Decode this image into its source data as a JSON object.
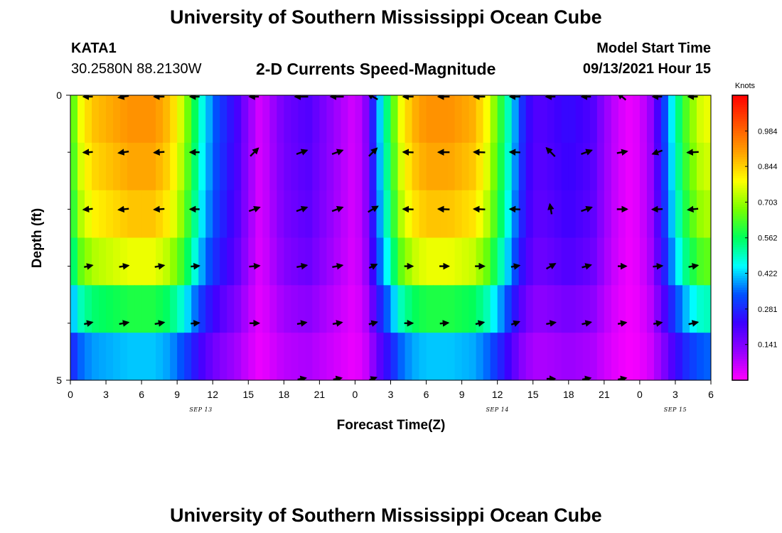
{
  "header": {
    "title": "University of Southern Mississippi Ocean Cube",
    "station_id": "KATA1",
    "station_coords": "30.2580N  88.2130W",
    "plot_title": "2-D Currents Speed-Magnitude",
    "model_start_label": "Model Start Time",
    "model_start_value": "09/13/2021 Hour 15"
  },
  "footer": {
    "title": "University of Southern Mississippi Ocean Cube"
  },
  "chart_data": {
    "type": "heatmap",
    "title": "2-D Currents Speed-Magnitude",
    "xlabel": "Forecast Time(Z)",
    "ylabel": "Depth (ft)",
    "x_range_hours": [
      0,
      54
    ],
    "y_range_ft": [
      0,
      5
    ],
    "x_ticks": [
      "0",
      "3",
      "6",
      "9",
      "12",
      "15",
      "18",
      "21",
      "0",
      "3",
      "6",
      "9",
      "12",
      "15",
      "18",
      "21",
      "0",
      "3",
      "6"
    ],
    "x_tick_hours": [
      0,
      3,
      6,
      9,
      12,
      15,
      18,
      21,
      24,
      27,
      30,
      33,
      36,
      39,
      42,
      45,
      48,
      51,
      54
    ],
    "date_labels": [
      {
        "label": "SEP 13",
        "hour": 11
      },
      {
        "label": "SEP 14",
        "hour": 36
      },
      {
        "label": "SEP 15",
        "hour": 51
      }
    ],
    "y_ticks": [
      "0",
      "5"
    ],
    "y_tick_values": [
      0,
      5
    ],
    "colorbar": {
      "units": "Knots",
      "min": 0.0,
      "max": 1.125,
      "tick_labels": [
        "0.984",
        "0.844",
        "0.703",
        "0.562",
        "0.422",
        "0.281",
        "0.141"
      ],
      "tick_values": [
        0.984,
        0.844,
        0.703,
        0.562,
        0.422,
        0.281,
        0.141
      ]
    },
    "depth_levels_ft": [
      0,
      1,
      2,
      3,
      4,
      5
    ],
    "speed_time_hours": [
      0,
      1,
      2,
      3,
      4,
      5,
      6,
      7,
      8,
      9,
      10,
      11,
      12,
      13,
      14,
      15,
      16,
      17,
      18,
      19,
      20,
      21,
      22,
      23,
      24,
      25,
      26,
      27,
      28,
      29,
      30,
      31,
      32,
      33,
      34,
      35,
      36,
      37,
      38,
      39,
      40,
      41,
      42,
      43,
      44,
      45,
      46,
      47,
      48,
      49,
      50,
      51,
      52,
      53,
      54
    ],
    "speed_surface_knots": [
      0.6,
      0.8,
      0.86,
      0.88,
      0.9,
      0.92,
      0.92,
      0.92,
      0.88,
      0.8,
      0.65,
      0.48,
      0.36,
      0.28,
      0.22,
      0.12,
      0.04,
      0.1,
      0.16,
      0.18,
      0.2,
      0.16,
      0.12,
      0.08,
      0.04,
      0.14,
      0.4,
      0.6,
      0.8,
      0.88,
      0.92,
      0.92,
      0.92,
      0.9,
      0.88,
      0.8,
      0.65,
      0.48,
      0.3,
      0.2,
      0.2,
      0.22,
      0.24,
      0.22,
      0.2,
      0.12,
      0.06,
      0.02,
      0.04,
      0.12,
      0.3,
      0.5,
      0.65,
      0.75,
      0.78
    ],
    "speed_profile_scale": [
      1.0,
      0.97,
      0.93,
      0.84,
      0.64,
      0.45
    ],
    "vectors_time_hours": [
      1.5,
      4.5,
      7.5,
      10.5,
      15.5,
      19.5,
      22.5,
      25.5,
      28.5,
      31.5,
      34.5,
      37.5,
      40.5,
      43.5,
      46.5,
      49.5,
      52.5
    ],
    "vectors_depth_ft": [
      0,
      1,
      2,
      3,
      4,
      5
    ],
    "vectors_speed_knots": [
      [
        0.2,
        0.22,
        0.22,
        0.2,
        0.2,
        0.28,
        0.28,
        0.24,
        0.22,
        0.24,
        0.24,
        0.22,
        0.2,
        0.2,
        0.22,
        0.2,
        0.2
      ],
      [
        0.2,
        0.22,
        0.22,
        0.2,
        0.24,
        0.24,
        0.24,
        0.24,
        0.22,
        0.24,
        0.24,
        0.22,
        0.26,
        0.24,
        0.22,
        0.22,
        0.24
      ],
      [
        0.2,
        0.22,
        0.22,
        0.2,
        0.24,
        0.24,
        0.24,
        0.24,
        0.22,
        0.24,
        0.24,
        0.22,
        0.22,
        0.24,
        0.22,
        0.22,
        0.22
      ],
      [
        0.18,
        0.2,
        0.2,
        0.18,
        0.22,
        0.22,
        0.22,
        0.18,
        0.18,
        0.2,
        0.2,
        0.18,
        0.22,
        0.2,
        0.18,
        0.2,
        0.2
      ],
      [
        0.18,
        0.2,
        0.2,
        0.18,
        0.2,
        0.2,
        0.2,
        0.18,
        0.18,
        0.18,
        0.18,
        0.18,
        0.2,
        0.2,
        0.18,
        0.18,
        0.2
      ],
      [
        0.0,
        0.0,
        0.0,
        0.0,
        0.0,
        0.18,
        0.18,
        0.16,
        0.0,
        0.0,
        0.0,
        0.0,
        0.18,
        0.18,
        0.18,
        0.0,
        0.0
      ]
    ],
    "vectors_direction_deg": [
      [
        180,
        190,
        180,
        180,
        180,
        180,
        180,
        150,
        180,
        180,
        180,
        180,
        180,
        180,
        140,
        180,
        180
      ],
      [
        183,
        188,
        184,
        180,
        45,
        20,
        20,
        45,
        178,
        180,
        178,
        178,
        135,
        20,
        10,
        200,
        183
      ],
      [
        185,
        186,
        184,
        180,
        20,
        20,
        20,
        30,
        178,
        178,
        178,
        178,
        100,
        20,
        0,
        182,
        186
      ],
      [
        12,
        8,
        10,
        5,
        5,
        10,
        10,
        25,
        0,
        0,
        0,
        10,
        30,
        15,
        0,
        5,
        10
      ],
      [
        12,
        10,
        10,
        5,
        0,
        10,
        10,
        15,
        0,
        5,
        12,
        20,
        10,
        12,
        10,
        10,
        12
      ],
      [
        0,
        0,
        0,
        0,
        0,
        10,
        10,
        20,
        0,
        0,
        0,
        0,
        0,
        10,
        10,
        0,
        0
      ]
    ]
  }
}
